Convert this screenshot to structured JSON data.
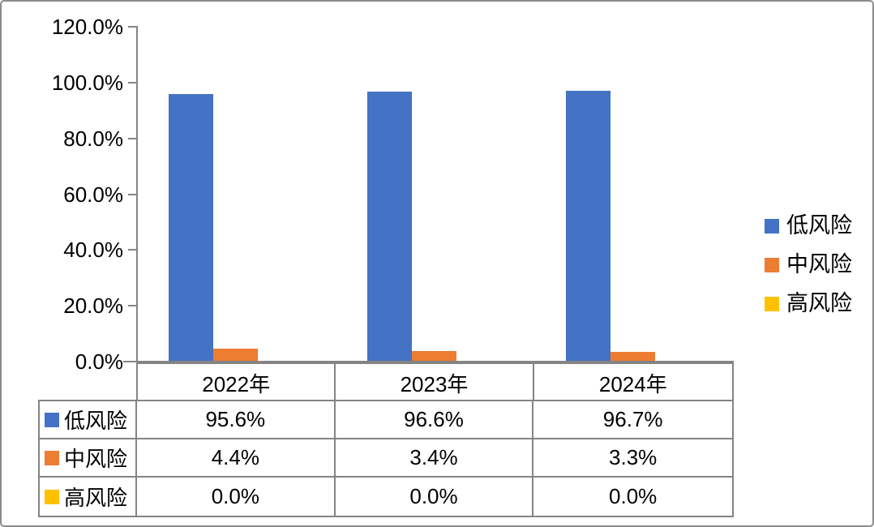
{
  "chart_data": {
    "type": "bar",
    "title": "",
    "categories": [
      "2022年",
      "2023年",
      "2024年"
    ],
    "series": [
      {
        "name": "低风险",
        "color": "#4472C4",
        "values": [
          95.6,
          96.6,
          96.7
        ]
      },
      {
        "name": "中风险",
        "color": "#ED7D31",
        "values": [
          4.4,
          3.4,
          3.3
        ]
      },
      {
        "name": "高风险",
        "color": "#FFC000",
        "values": [
          0.0,
          0.0,
          0.0
        ]
      }
    ],
    "xlabel": "",
    "ylabel": "",
    "ylim": [
      0,
      120
    ],
    "y_tick_step": 20,
    "y_tick_labels": [
      "120.0%",
      "100.0%",
      "80.0%",
      "60.0%",
      "40.0%",
      "20.0%",
      "0.0%"
    ],
    "grid": false,
    "legend_position": "right",
    "has_data_table": true
  },
  "legend": {
    "items": [
      {
        "label": "低风险",
        "color": "#4472C4"
      },
      {
        "label": "中风险",
        "color": "#ED7D31"
      },
      {
        "label": "高风险",
        "color": "#FFC000"
      }
    ]
  },
  "table": {
    "column_headers": [
      "2022年",
      "2023年",
      "2024年"
    ],
    "rows": [
      {
        "label": "低风险",
        "swatch_color": "#4472C4",
        "values": [
          "95.6%",
          "96.6%",
          "96.7%"
        ]
      },
      {
        "label": "中风险",
        "swatch_color": "#ED7D31",
        "values": [
          "4.4%",
          "3.4%",
          "3.3%"
        ]
      },
      {
        "label": "高风险",
        "swatch_color": "#FFC000",
        "values": [
          "0.0%",
          "0.0%",
          "0.0%"
        ]
      }
    ]
  },
  "colors": {
    "axis": "#848484",
    "table_border": "#848484",
    "frame_border": "#8b8b8b",
    "text": "#000000"
  }
}
